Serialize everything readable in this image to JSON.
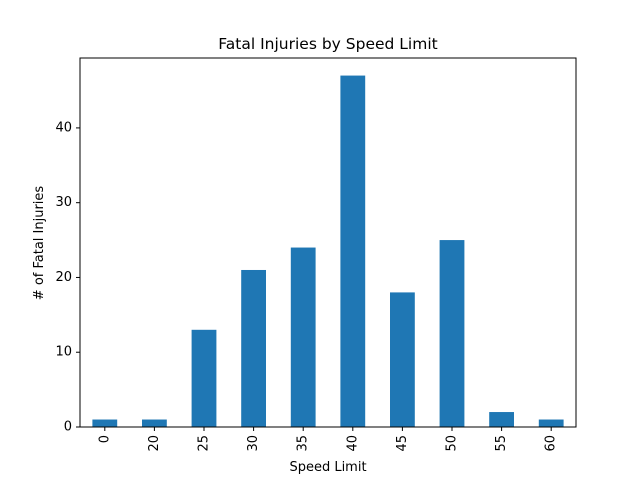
{
  "chart_data": {
    "type": "bar",
    "title": "Fatal Injuries by Speed Limit",
    "xlabel": "Speed Limit",
    "ylabel": "# of Fatal Injuries",
    "categories": [
      "0",
      "20",
      "25",
      "30",
      "35",
      "40",
      "45",
      "50",
      "55",
      "60"
    ],
    "values": [
      1,
      1,
      13,
      21,
      24,
      47,
      18,
      25,
      2,
      1
    ],
    "ylim": [
      0,
      49.35
    ],
    "yticks": [
      "0",
      "10",
      "20",
      "30",
      "40"
    ],
    "grid": false,
    "legend": "none",
    "bar_color": "#1f77b4"
  }
}
